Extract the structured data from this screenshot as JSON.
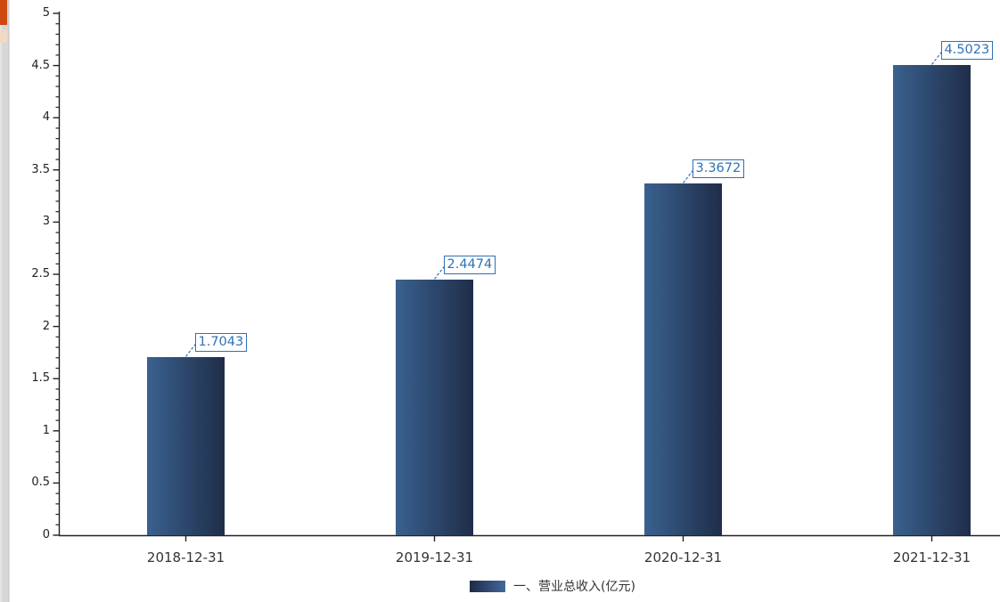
{
  "page": {
    "background": "#ffffff",
    "edge_strip": {
      "strip_color": "#d7d7d7",
      "top_marker_color": "#ce4a10",
      "sub_marker_color": "#f2d9c4"
    }
  },
  "chart_data": {
    "type": "bar",
    "title": "",
    "categories": [
      "2018-12-31",
      "2019-12-31",
      "2020-12-31",
      "2021-12-31"
    ],
    "series": [
      {
        "name": "一、营业总收入(亿元)",
        "values": [
          1.7043,
          2.4474,
          3.3672,
          4.5023
        ]
      }
    ],
    "data_labels": [
      "1.7043",
      "2.4474",
      "3.3672",
      "4.5023"
    ],
    "ylim": [
      0,
      5
    ],
    "y_major_step": 0.5,
    "y_minor_step": 0.1,
    "y_tick_labels": [
      "0",
      "0.5",
      "1",
      "1.5",
      "2",
      "2.5",
      "3",
      "3.5",
      "4",
      "4.5",
      "5"
    ],
    "grid": false,
    "legend_position": "bottom",
    "colors": {
      "bar_gradient_left": "#3a618f",
      "bar_gradient_right": "#1f2d49",
      "legend_gradient_left": "#1d2b45",
      "legend_gradient_right": "#44689a",
      "label_accent": "#2e72b4",
      "axis": "#222222",
      "text": "#333333"
    }
  }
}
